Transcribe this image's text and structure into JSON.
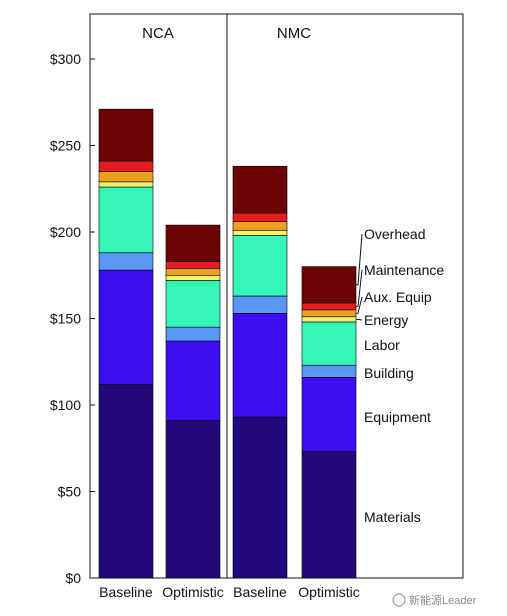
{
  "chart_data": {
    "type": "bar",
    "stacked": true,
    "groups": [
      "NCA",
      "NMC"
    ],
    "categories": [
      "Baseline",
      "Optimistic",
      "Baseline",
      "Optimistic"
    ],
    "category_group": [
      0,
      0,
      1,
      1
    ],
    "ylim": [
      0,
      300
    ],
    "yticks": [
      0,
      50,
      100,
      150,
      200,
      250,
      300
    ],
    "ytick_labels": [
      "$0",
      "$50",
      "$100",
      "$150",
      "$200",
      "$250",
      "$300"
    ],
    "series": [
      {
        "name": "Materials",
        "color": "#22087a",
        "values": [
          112,
          91,
          93,
          73
        ]
      },
      {
        "name": "Equipment",
        "color": "#3d0ff0",
        "values": [
          66,
          46,
          60,
          43
        ]
      },
      {
        "name": "Building",
        "color": "#5a96f5",
        "values": [
          10,
          8,
          10,
          7
        ]
      },
      {
        "name": "Labor",
        "color": "#36f5b8",
        "values": [
          38,
          27,
          35,
          25
        ]
      },
      {
        "name": "Energy",
        "color": "#eef26a",
        "values": [
          3,
          3,
          3,
          3
        ]
      },
      {
        "name": "Aux. Equip",
        "color": "#f0a020",
        "values": [
          6,
          4,
          5,
          4
        ]
      },
      {
        "name": "Maintenance",
        "color": "#e81c1c",
        "values": [
          6,
          4,
          5,
          4
        ]
      },
      {
        "name": "Overhead",
        "color": "#6b0404",
        "values": [
          30,
          21,
          27,
          21
        ]
      }
    ],
    "legend_placement": "right",
    "grid": false
  },
  "watermark": "新能源Leader"
}
